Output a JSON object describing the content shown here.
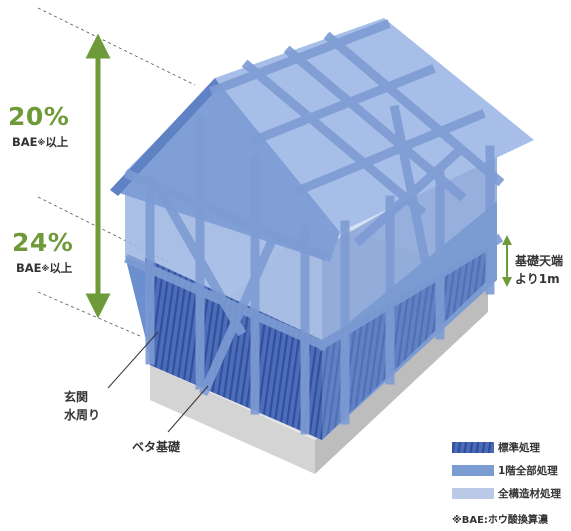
{
  "upper_zone": {
    "percent": "20%",
    "bae_prefix": "BAE",
    "bae_mark": "※",
    "bae_suffix": "以上"
  },
  "lower_zone": {
    "percent": "24%",
    "bae_prefix": "BAE",
    "bae_mark": "※",
    "bae_suffix": "以上"
  },
  "callouts": {
    "foundation_height_line1": "基礎天端",
    "foundation_height_line2": "より1m",
    "entrance_line1": "玄関",
    "entrance_line2": "水周り",
    "slab_foundation": "ベタ基礎"
  },
  "legend": [
    {
      "label": "標準処理",
      "color": "#3f5fae",
      "pattern": "stripe"
    },
    {
      "label": "1階全部処理",
      "color": "#7b9bd3",
      "pattern": "solid"
    },
    {
      "label": "全構造材処理",
      "color": "#b9c9e6",
      "pattern": "solid"
    }
  ],
  "footnote": "※BAE:ホウ酸換算濃",
  "colors": {
    "arrow_green": "#6f9a3a",
    "percent_green": "#6f9a3a"
  }
}
